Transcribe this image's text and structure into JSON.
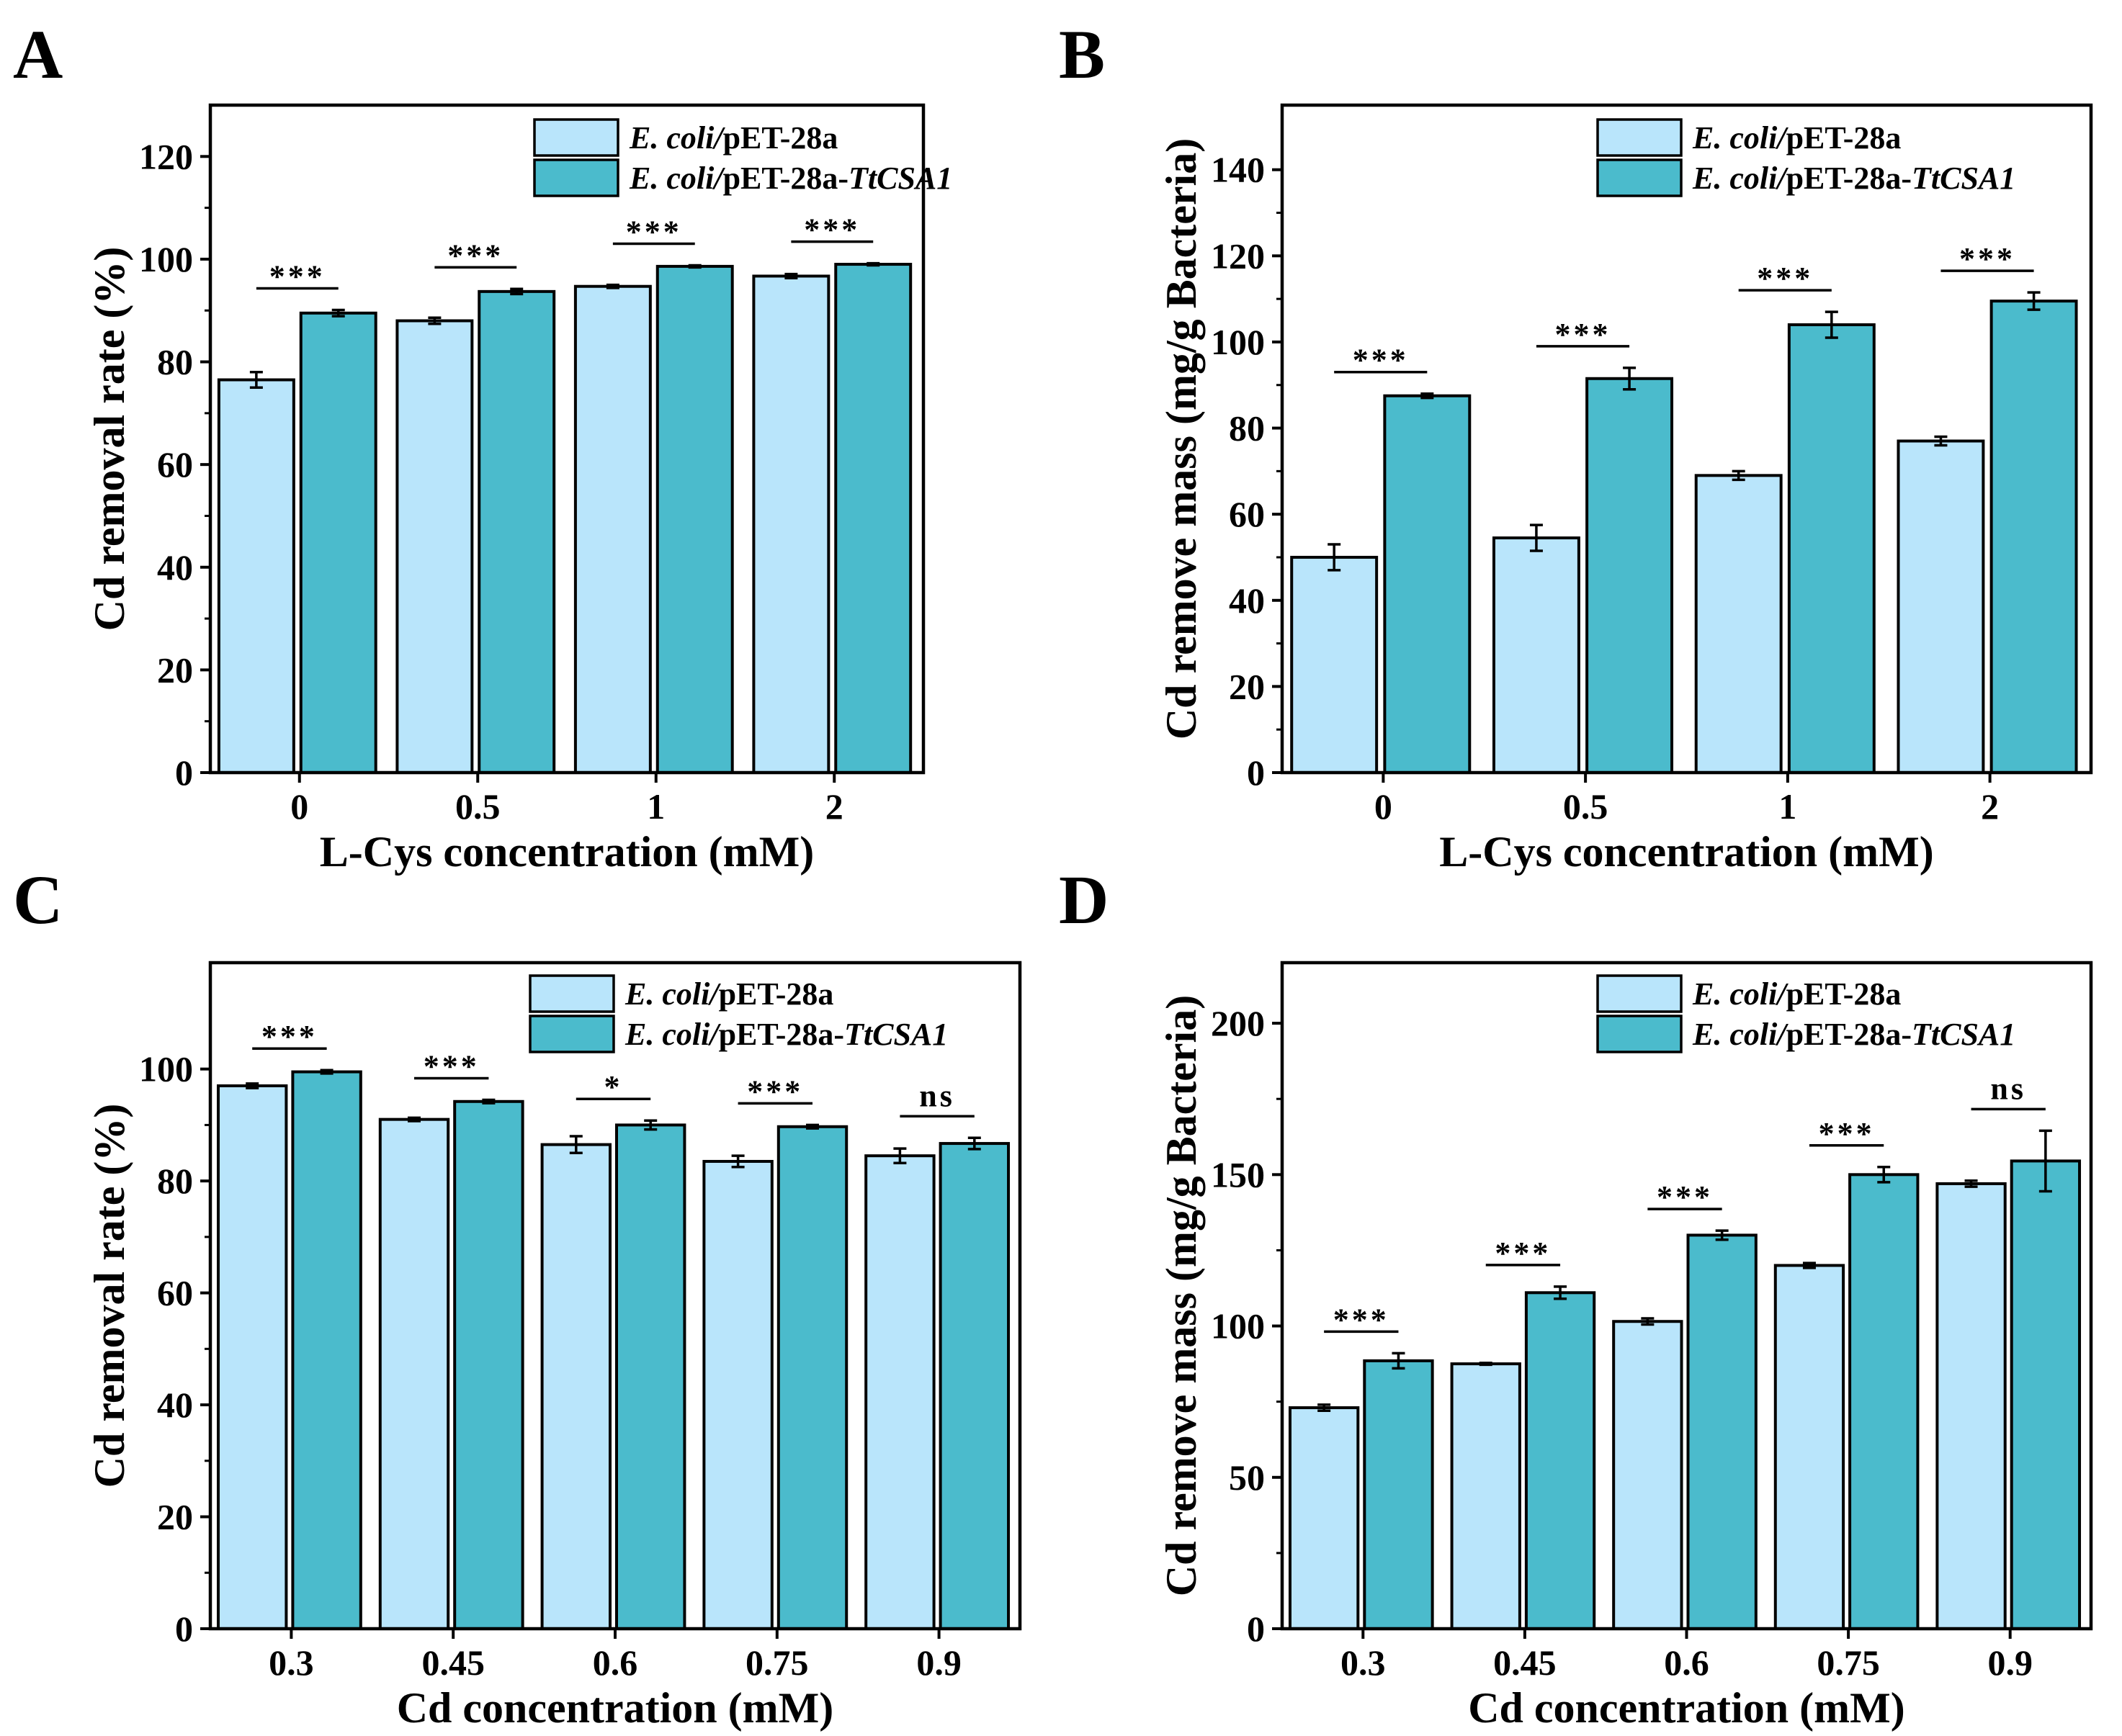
{
  "colors": {
    "control": "#b9e5fb",
    "treatment": "#4bbbcc",
    "axis": "#000000"
  },
  "legend": [
    {
      "italic": "E. coli/",
      "normal": "pET-28a",
      "italic_suffix": ""
    },
    {
      "italic": "E. coli/",
      "normal": "pET-28a-",
      "italic_suffix": "TtCSA1"
    }
  ],
  "chart_data": [
    {
      "panel": "A",
      "type": "bar",
      "xlabel": "L-Cys concentration (mM)",
      "ylabel": "Cd removal rate (%)",
      "ylim": [
        0,
        130
      ],
      "yticks": [
        0,
        20,
        40,
        60,
        80,
        100,
        120
      ],
      "categories": [
        "0",
        "0.5",
        "1",
        "2"
      ],
      "series": [
        {
          "name": "E. coli/pET-28a",
          "values": [
            76.5,
            88,
            94.7,
            96.7
          ],
          "errors": [
            1.5,
            0.6,
            0.3,
            0.4
          ]
        },
        {
          "name": "E. coli/pET-28a-TtCSA1",
          "values": [
            89.5,
            93.7,
            98.6,
            99
          ],
          "errors": [
            0.6,
            0.5,
            0.2,
            0.2
          ]
        }
      ],
      "significance": [
        "***",
        "***",
        "***",
        "***"
      ],
      "legend_position": "top-right"
    },
    {
      "panel": "B",
      "type": "bar",
      "xlabel": "L-Cys concentration (mM)",
      "ylabel": "Cd remove mass (mg/g Bacteria)",
      "ylim": [
        0,
        155
      ],
      "yticks": [
        0,
        20,
        40,
        60,
        80,
        100,
        120,
        140
      ],
      "categories": [
        "0",
        "0.5",
        "1",
        "2"
      ],
      "series": [
        {
          "name": "E. coli/pET-28a",
          "values": [
            50,
            54.5,
            69,
            77
          ],
          "errors": [
            3,
            3,
            1,
            1
          ]
        },
        {
          "name": "E. coli/pET-28a-TtCSA1",
          "values": [
            87.5,
            91.5,
            104,
            109.5
          ],
          "errors": [
            0.5,
            2.5,
            3,
            2
          ]
        }
      ],
      "significance": [
        "***",
        "***",
        "***",
        "***"
      ],
      "legend_position": "top-right"
    },
    {
      "panel": "C",
      "type": "bar",
      "xlabel": "Cd concentration (mM)",
      "ylabel": "Cd removal rate (%)",
      "ylim": [
        0,
        119
      ],
      "yticks": [
        0,
        20,
        40,
        60,
        80,
        100
      ],
      "categories": [
        "0.3",
        "0.45",
        "0.6",
        "0.75",
        "0.9"
      ],
      "series": [
        {
          "name": "E. coli/pET-28a",
          "values": [
            97,
            91,
            86.5,
            83.5,
            84.5
          ],
          "errors": [
            0.4,
            0.3,
            1.5,
            1,
            1.3
          ]
        },
        {
          "name": "E. coli/pET-28a-TtCSA1",
          "values": [
            99.5,
            94.2,
            90,
            89.7,
            86.7
          ],
          "errors": [
            0.3,
            0.3,
            0.8,
            0.3,
            1
          ]
        }
      ],
      "significance": [
        "***",
        "***",
        "*",
        "***",
        "ns"
      ],
      "legend_position": "top-right"
    },
    {
      "panel": "D",
      "type": "bar",
      "xlabel": "Cd concentration (mM)",
      "ylabel": "Cd remove mass (mg/g Bacteria)",
      "ylim": [
        0,
        220
      ],
      "yticks": [
        0,
        50,
        100,
        150,
        200
      ],
      "categories": [
        "0.3",
        "0.45",
        "0.6",
        "0.75",
        "0.9"
      ],
      "series": [
        {
          "name": "E. coli/pET-28a",
          "values": [
            73,
            87.5,
            101.5,
            120,
            147
          ],
          "errors": [
            1,
            0.3,
            1,
            0.8,
            1
          ]
        },
        {
          "name": "E. coli/pET-28a-TtCSA1",
          "values": [
            88.5,
            111,
            130,
            150,
            154.5
          ],
          "errors": [
            2.5,
            2,
            1.5,
            2.5,
            10
          ]
        }
      ],
      "significance": [
        "***",
        "***",
        "***",
        "***",
        "ns"
      ],
      "legend_position": "top-right"
    }
  ]
}
